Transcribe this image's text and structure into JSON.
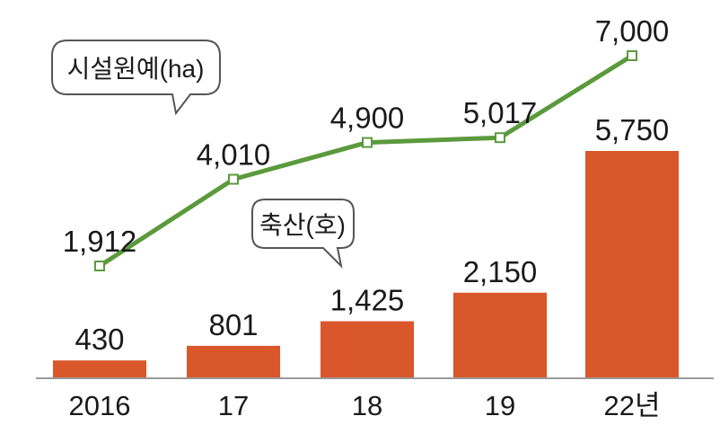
{
  "chart_data": {
    "type": "bar",
    "categories": [
      "2016",
      "17",
      "18",
      "19",
      "22년"
    ],
    "series": [
      {
        "name": "시설원예(ha)",
        "type": "line",
        "color": "#5b9a3c",
        "values": [
          1912,
          4010,
          4900,
          5017,
          7000
        ],
        "labels": [
          "1,912",
          "4,010",
          "4,900",
          "5,017",
          "7,000"
        ]
      },
      {
        "name": "축산(호)",
        "type": "bar",
        "color": "#d9572b",
        "values": [
          430,
          801,
          1425,
          2150,
          5750
        ],
        "labels": [
          "430",
          "801",
          "1,425",
          "2,150",
          "5,750"
        ]
      }
    ],
    "title": "",
    "xlabel": "",
    "ylabel": "",
    "grid": false,
    "legend": "callout-bubbles"
  }
}
